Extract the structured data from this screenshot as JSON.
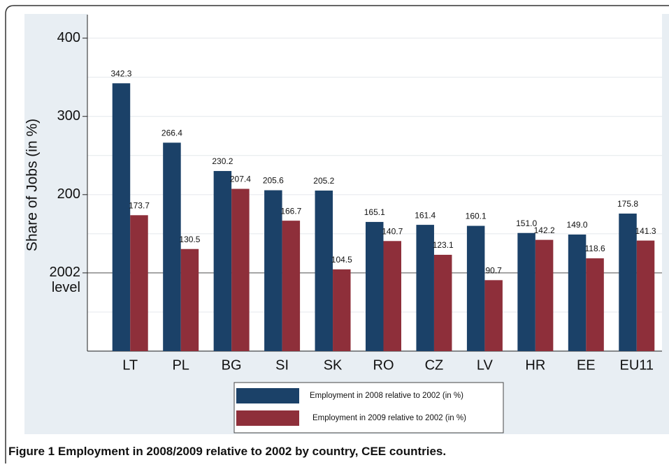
{
  "chart_data": {
    "type": "bar",
    "y_label": "Share of Jobs (in %)",
    "categories": [
      "LT",
      "PL",
      "BG",
      "SI",
      "SK",
      "RO",
      "CZ",
      "LV",
      "HR",
      "EE",
      "EU11"
    ],
    "series": [
      {
        "name": "Employment in 2008 relative to 2002 (in %)",
        "color": "#1b4168",
        "values": [
          342.3,
          266.4,
          230.2,
          205.6,
          205.2,
          165.1,
          161.4,
          160.1,
          151.0,
          149.0,
          175.8
        ],
        "value_labels": [
          "342.3",
          "266.4",
          "230.2",
          "205.6",
          "205.2",
          "165.1",
          "161.4",
          "160.1",
          "151.0",
          "149.0",
          "175.8"
        ]
      },
      {
        "name": "Employment in 2009 relative to 2002 (in %)",
        "color": "#8e2f3a",
        "values": [
          173.7,
          130.5,
          207.4,
          166.7,
          104.5,
          140.7,
          123.1,
          90.7,
          142.2,
          118.6,
          141.3
        ],
        "value_labels": [
          "173.7",
          "130.5",
          "207.4",
          "166.7",
          "104.5",
          "140.7",
          "123.1",
          "90.7",
          "142.2",
          "118.6",
          "141.3"
        ]
      }
    ],
    "ylim": [
      0,
      430
    ],
    "yticks": [
      {
        "value": 100,
        "label": "2002 level"
      },
      200,
      300,
      400
    ],
    "minor_yticks": [
      50,
      150,
      250,
      350
    ],
    "grid": true,
    "caption": {
      "label": "Figure 1",
      "text": "Employment in 2008/2009 relative to 2002 by country, CEE countries."
    }
  }
}
